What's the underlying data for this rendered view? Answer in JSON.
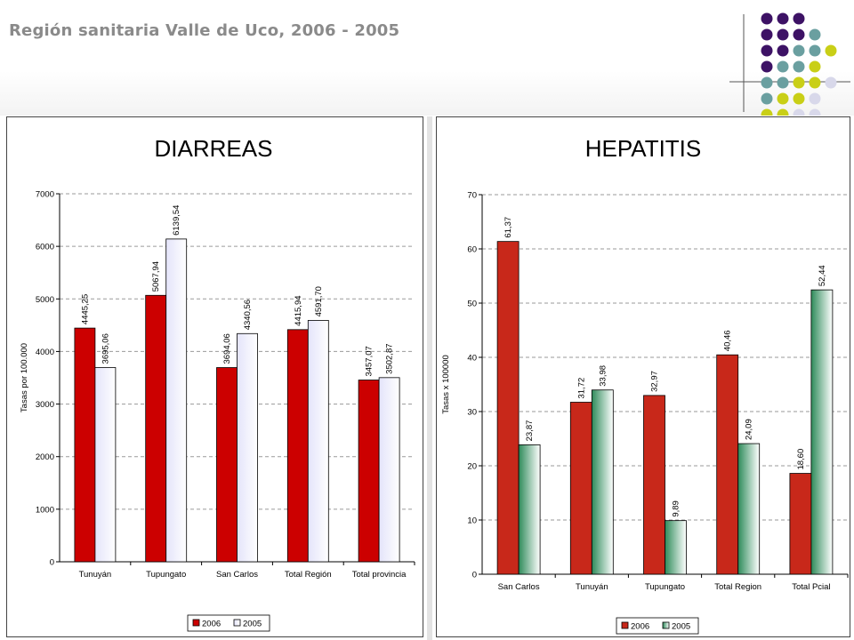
{
  "page": {
    "title": "Región sanitaria Valle de Uco, 2006 - 2005",
    "dot_colors": [
      "#3d1265",
      "#6a9fa0",
      "#c9cf17",
      "#d8d8ea"
    ]
  },
  "chart_data": [
    {
      "type": "bar",
      "title": "DIARREAS",
      "xlabel": "",
      "ylabel": "Tasas por 100.000",
      "ylim": [
        0,
        7000
      ],
      "yticks": [
        0,
        1000,
        2000,
        3000,
        4000,
        5000,
        6000,
        7000
      ],
      "grid": true,
      "legend_position": "bottom-center",
      "categories": [
        "Tunuyán",
        "Tupungato",
        "San Carlos",
        "Total Región",
        "Total provincia"
      ],
      "series": [
        {
          "name": "2006",
          "color": "#cc0000",
          "values": [
            4445.25,
            5067.94,
            3694.06,
            4415.94,
            3457.07
          ],
          "labels": [
            "4445,25",
            "5067,94",
            "3694,06",
            "4415,94",
            "3457,07"
          ]
        },
        {
          "name": "2005",
          "color": "#e4e4fa",
          "values": [
            3695.06,
            6139.54,
            4340.56,
            4591.7,
            3502.87
          ],
          "labels": [
            "3695,06",
            "6139,54",
            "4340,56",
            "4591,70",
            "3502,87"
          ]
        }
      ]
    },
    {
      "type": "bar",
      "title": "HEPATITIS",
      "xlabel": "",
      "ylabel": "Tasas x 100000",
      "ylim": [
        0,
        70
      ],
      "yticks": [
        0,
        10,
        20,
        30,
        40,
        50,
        60,
        70
      ],
      "grid": true,
      "legend_position": "bottom-center",
      "categories": [
        "San Carlos",
        "Tunuyán",
        "Tupungato",
        "Total Region",
        "Total   Pcial"
      ],
      "series": [
        {
          "name": "2006",
          "color": "#c8281a",
          "values": [
            61.37,
            31.72,
            32.97,
            40.46,
            18.6
          ],
          "labels": [
            "61,37",
            "31,72",
            "32,97",
            "40,46",
            "18,60"
          ]
        },
        {
          "name": "2005",
          "color": "#2e8b5a",
          "values": [
            23.87,
            33.98,
            9.89,
            24.09,
            52.44
          ],
          "labels": [
            "23,87",
            "33,98",
            "9,89",
            "24,09",
            "52,44"
          ]
        }
      ]
    }
  ]
}
